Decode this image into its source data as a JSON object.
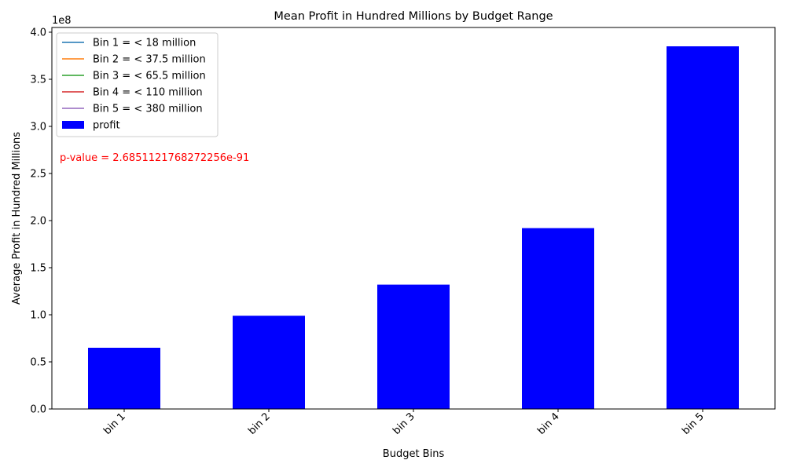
{
  "chart_data": {
    "type": "bar",
    "title": "Mean Profit in Hundred Millions by Budget Range",
    "xlabel": "Budget Bins",
    "ylabel": "Average Profit in Hundred Millions",
    "y_offset_label": "1e8",
    "categories": [
      "bin 1",
      "bin 2",
      "bin 3",
      "bin 4",
      "bin 5"
    ],
    "series": [
      {
        "name": "profit",
        "values": [
          65000000,
          99000000,
          132000000,
          192000000,
          385000000
        ],
        "color": "#0000ff"
      }
    ],
    "ylim": [
      0,
      405000000
    ],
    "yticks": [
      0,
      50000000,
      100000000,
      150000000,
      200000000,
      250000000,
      300000000,
      350000000,
      400000000
    ],
    "ytick_labels": [
      "0.0",
      "0.5",
      "1.0",
      "1.5",
      "2.0",
      "2.5",
      "3.0",
      "3.5",
      "4.0"
    ],
    "legend": {
      "placement": "top-left",
      "entries": [
        {
          "label": "Bin 1 = < 18 million",
          "kind": "line",
          "color": "#1f77b4"
        },
        {
          "label": "Bin 2 = < 37.5 million",
          "kind": "line",
          "color": "#ff7f0e"
        },
        {
          "label": "Bin 3 = < 65.5 million",
          "kind": "line",
          "color": "#2ca02c"
        },
        {
          "label": "Bin 4 = < 110 million",
          "kind": "line",
          "color": "#d62728"
        },
        {
          "label": "Bin 5 = < 380 million",
          "kind": "line",
          "color": "#9467bd"
        },
        {
          "label": "profit",
          "kind": "patch",
          "color": "#0000ff"
        }
      ]
    },
    "annotation": {
      "text": "p-value = 2.6851121768272256e-91",
      "color": "#ff0000"
    },
    "grid": false
  }
}
